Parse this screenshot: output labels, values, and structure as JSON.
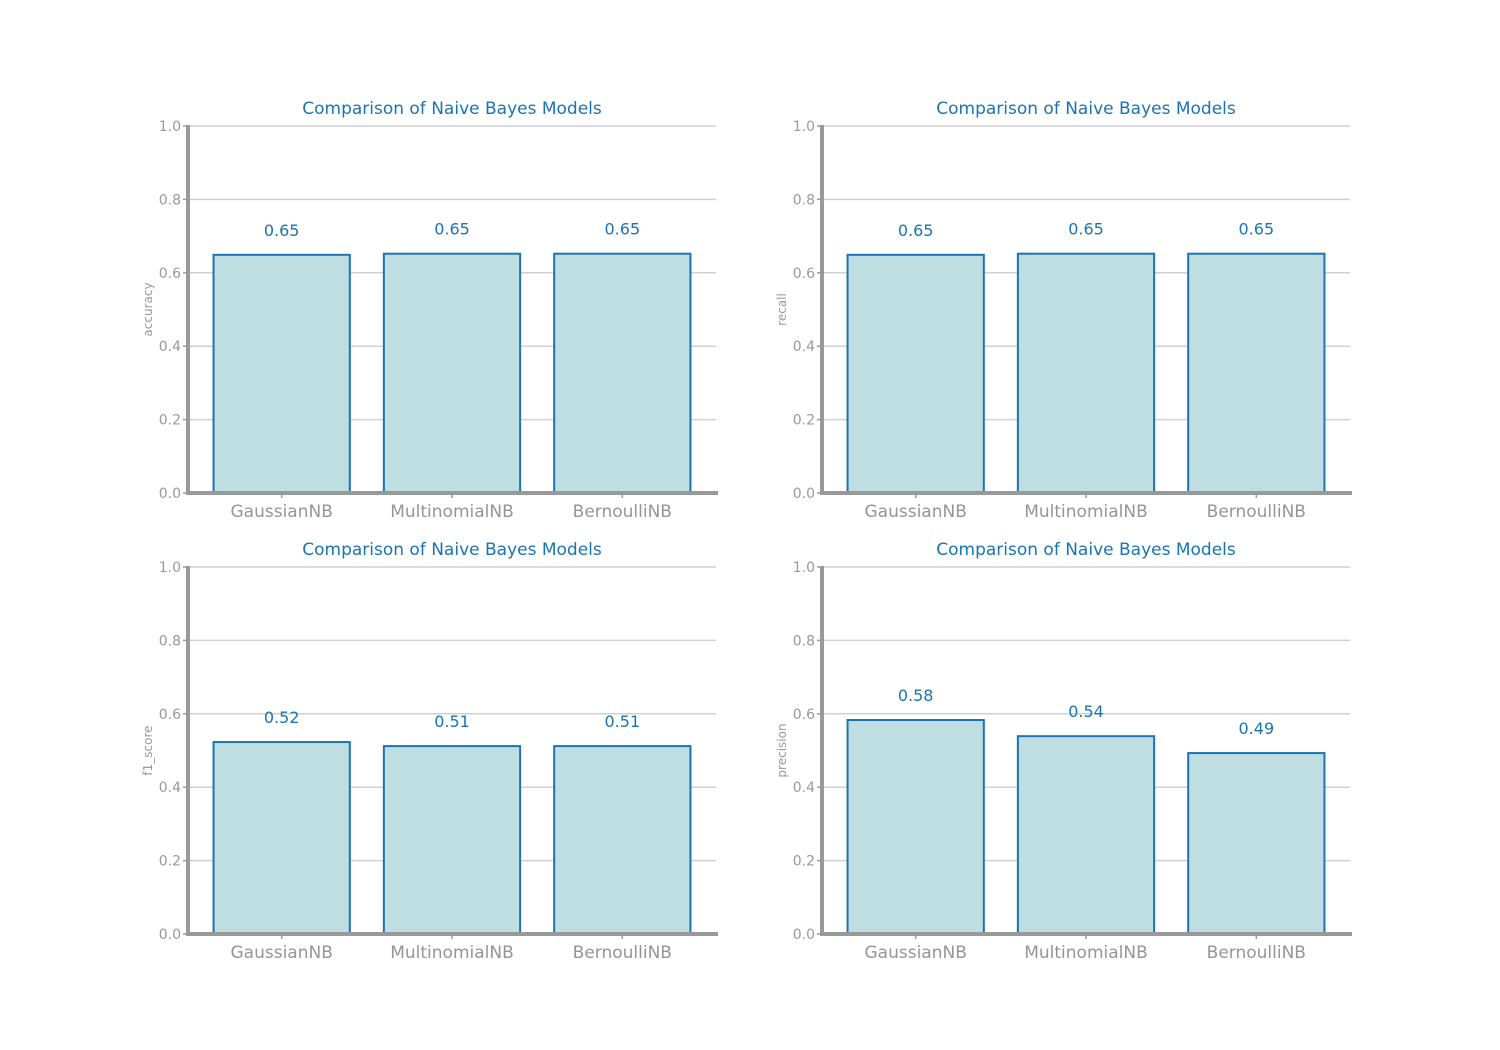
{
  "chart_data": [
    {
      "type": "bar",
      "title": "Comparison of Naive Bayes Models",
      "ylabel": "accuracy",
      "xlabel": "",
      "categories": [
        "GaussianNB",
        "MultinomialNB",
        "BernoulliNB"
      ],
      "values": [
        0.649,
        0.652,
        0.652
      ],
      "value_labels": [
        "0.65",
        "0.65",
        "0.65"
      ],
      "ylim": [
        0,
        1.0
      ],
      "yticks": [
        "0.0",
        "0.2",
        "0.4",
        "0.6",
        "0.8",
        "1.0"
      ],
      "grid": true
    },
    {
      "type": "bar",
      "title": "Comparison of Naive Bayes Models",
      "ylabel": "recall",
      "xlabel": "",
      "categories": [
        "GaussianNB",
        "MultinomialNB",
        "BernoulliNB"
      ],
      "values": [
        0.649,
        0.652,
        0.652
      ],
      "value_labels": [
        "0.65",
        "0.65",
        "0.65"
      ],
      "ylim": [
        0,
        1.0
      ],
      "yticks": [
        "0.0",
        "0.2",
        "0.4",
        "0.6",
        "0.8",
        "1.0"
      ],
      "grid": true
    },
    {
      "type": "bar",
      "title": "Comparison of Naive Bayes Models",
      "ylabel": "f1_score",
      "xlabel": "",
      "categories": [
        "GaussianNB",
        "MultinomialNB",
        "BernoulliNB"
      ],
      "values": [
        0.523,
        0.512,
        0.512
      ],
      "value_labels": [
        "0.52",
        "0.51",
        "0.51"
      ],
      "ylim": [
        0,
        1.0
      ],
      "yticks": [
        "0.0",
        "0.2",
        "0.4",
        "0.6",
        "0.8",
        "1.0"
      ],
      "grid": true
    },
    {
      "type": "bar",
      "title": "Comparison of Naive Bayes Models",
      "ylabel": "precision",
      "xlabel": "",
      "categories": [
        "GaussianNB",
        "MultinomialNB",
        "BernoulliNB"
      ],
      "values": [
        0.583,
        0.539,
        0.493
      ],
      "value_labels": [
        "0.58",
        "0.54",
        "0.49"
      ],
      "ylim": [
        0,
        1.0
      ],
      "yticks": [
        "0.0",
        "0.2",
        "0.4",
        "0.6",
        "0.8",
        "1.0"
      ],
      "grid": true
    }
  ],
  "colors": {
    "bar_fill": "#bfdee2",
    "bar_edge": "#1a74b4",
    "title": "#1a74b4",
    "axis": "#999999",
    "grid": "#d0d0d0"
  }
}
